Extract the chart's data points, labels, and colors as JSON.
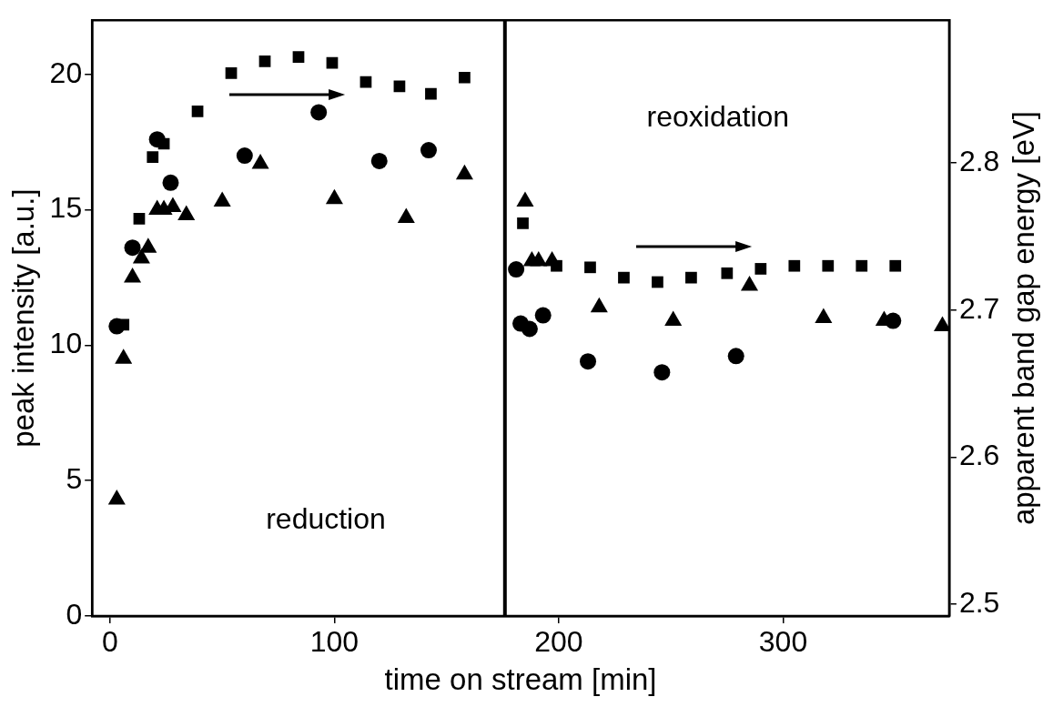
{
  "chart_data": {
    "type": "scatter",
    "xlabel": "time on stream [min]",
    "ylabel": "peak intensity [a.u.]",
    "y2label": "apparent band gap energy [eV]",
    "xlim": [
      -8,
      374
    ],
    "xticks": [
      0,
      100,
      200,
      300
    ],
    "ylim": [
      0,
      22
    ],
    "yticks": [
      0,
      5,
      10,
      15,
      20
    ],
    "y2lim": [
      2.492,
      2.897
    ],
    "y2ticks": [
      2.5,
      2.6,
      2.7,
      2.8
    ],
    "grid": false,
    "legend": false,
    "ref_lines": [
      {
        "axis": "x",
        "value": 176,
        "color": "#000000"
      }
    ],
    "annotations": [
      "reduction",
      "reoxidation"
    ],
    "series": [
      {
        "color": "#000000",
        "marker": "square",
        "axis": "y2",
        "x": [
          6,
          13,
          19,
          24,
          39,
          54,
          69,
          84,
          99,
          114,
          129,
          143,
          158,
          184,
          199,
          214,
          229,
          244,
          259,
          275,
          290,
          305,
          320,
          335,
          350
        ],
        "values": [
          2.69,
          2.762,
          2.804,
          2.813,
          2.835,
          2.861,
          2.869,
          2.872,
          2.868,
          2.855,
          2.852,
          2.847,
          2.858,
          2.759,
          2.73,
          2.729,
          2.722,
          2.719,
          2.722,
          2.725,
          2.728,
          2.73,
          2.73,
          2.73,
          2.73
        ]
      },
      {
        "color": "#000000",
        "marker": "circle",
        "x": [
          3,
          10,
          21,
          27,
          60,
          93,
          120,
          142,
          181,
          183,
          187,
          193,
          213,
          246,
          279,
          349
        ],
        "values": [
          10.7,
          13.6,
          17.6,
          16.0,
          17.0,
          18.6,
          16.8,
          17.2,
          12.8,
          10.8,
          10.6,
          11.1,
          9.4,
          9.0,
          9.6,
          10.9
        ]
      },
      {
        "color": "#000000",
        "marker": "triangle",
        "x": [
          3,
          6,
          10,
          14,
          17,
          21,
          24,
          28,
          34,
          50,
          67,
          100,
          132,
          158,
          185,
          188,
          191,
          197,
          218,
          251,
          285,
          318,
          345,
          371
        ],
        "values": [
          4.3,
          9.5,
          12.5,
          13.2,
          13.6,
          15.0,
          15.0,
          15.1,
          14.8,
          15.3,
          16.7,
          15.4,
          14.7,
          16.3,
          15.3,
          13.1,
          13.1,
          13.1,
          11.4,
          10.9,
          12.2,
          11.0,
          10.9,
          10.7
        ]
      }
    ]
  }
}
